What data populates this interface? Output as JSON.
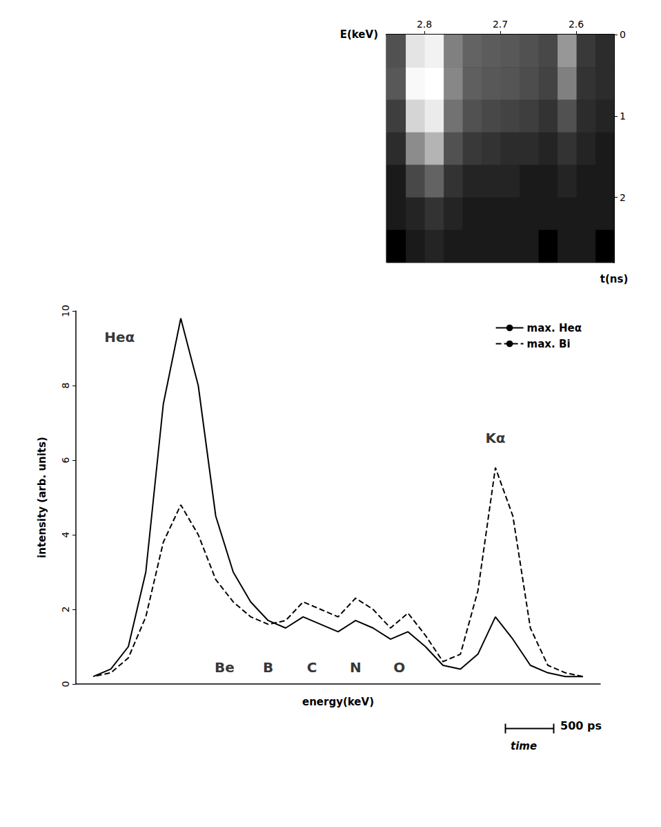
{
  "chart_data": [
    {
      "type": "line",
      "x_label": "energy(keV)",
      "y_label": "intensity (arb. units)",
      "x": [
        2.56,
        2.57,
        2.58,
        2.59,
        2.6,
        2.61,
        2.62,
        2.63,
        2.64,
        2.65,
        2.66,
        2.67,
        2.68,
        2.69,
        2.7,
        2.71,
        2.72,
        2.73,
        2.74,
        2.75,
        2.76,
        2.77,
        2.78,
        2.79,
        2.8,
        2.81,
        2.82,
        2.83,
        2.84
      ],
      "series": [
        {
          "name": "max. Heα",
          "color": "#000000",
          "line_style": "solid",
          "values": [
            0.2,
            0.2,
            0.3,
            0.5,
            1.2,
            1.8,
            0.8,
            0.4,
            0.5,
            1.0,
            1.4,
            1.2,
            1.5,
            1.7,
            1.4,
            1.6,
            1.8,
            1.5,
            1.7,
            2.2,
            3.0,
            4.5,
            8.0,
            9.8,
            7.5,
            3.0,
            1.0,
            0.4,
            0.2
          ]
        },
        {
          "name": "max. Bi",
          "color": "#000000",
          "line_style": "dashed",
          "values": [
            0.2,
            0.3,
            0.5,
            1.5,
            4.5,
            5.8,
            2.5,
            0.8,
            0.6,
            1.3,
            1.9,
            1.5,
            2.0,
            2.3,
            1.8,
            2.0,
            2.2,
            1.7,
            1.6,
            1.8,
            2.2,
            2.8,
            4.0,
            4.8,
            3.8,
            1.8,
            0.7,
            0.3,
            0.2
          ]
        }
      ],
      "xlim": [
        2.85,
        2.55
      ],
      "ylim": [
        0,
        10
      ],
      "yticks": [
        0,
        2,
        4,
        6,
        8,
        10
      ],
      "grid": false,
      "legend": "upper right",
      "tick_labels": "y",
      "marker": "none",
      "annotations": [
        {
          "text": "Heα",
          "x": 2.825,
          "y": 9.3
        },
        {
          "text": "Kα",
          "x": 2.61,
          "y": 6.6
        },
        {
          "text": "Be",
          "x": 2.765,
          "y": 0.45
        },
        {
          "text": "B",
          "x": 2.74,
          "y": 0.45
        },
        {
          "text": "C",
          "x": 2.715,
          "y": 0.45
        },
        {
          "text": "N",
          "x": 2.69,
          "y": 0.45
        },
        {
          "text": "O",
          "x": 2.665,
          "y": 0.45
        }
      ],
      "time_axis": {
        "title": "time",
        "scale_label": "500 ps"
      }
    },
    {
      "type": "heatmap",
      "x_label": "E(keV)",
      "y_label": "t(ns)",
      "xlim": [
        2.85,
        2.55
      ],
      "ylim": [
        2.8,
        0
      ],
      "xticks": [
        2.8,
        2.7,
        2.6
      ],
      "yticks": [
        0,
        1,
        2
      ],
      "cells": {
        "x": [
          2.5625,
          2.5875,
          2.6125,
          2.6375,
          2.6625,
          2.6875,
          2.7125,
          2.7375,
          2.7625,
          2.7875,
          2.8125,
          2.8375
        ],
        "y": [
          0.2,
          0.6,
          1.0,
          1.4,
          1.8,
          2.2,
          2.6
        ],
        "values": [
          [
            0.3,
            0.5,
            3.5,
            0.8,
            1.0,
            1.2,
            1.3,
            1.5,
            2.5,
            9.0,
            8.0,
            1.0
          ],
          [
            0.3,
            0.4,
            2.5,
            0.7,
            0.9,
            1.1,
            1.2,
            1.4,
            2.8,
            10,
            9.5,
            1.2
          ],
          [
            0.2,
            0.3,
            1.0,
            0.4,
            0.6,
            0.7,
            0.8,
            1.0,
            2.0,
            8.5,
            7.0,
            0.6
          ],
          [
            0.1,
            0.2,
            0.4,
            0.2,
            0.3,
            0.3,
            0.4,
            0.5,
            1.0,
            5.0,
            3.0,
            0.3
          ],
          [
            0.1,
            0.1,
            0.2,
            0.1,
            0.1,
            0.2,
            0.2,
            0.2,
            0.4,
            1.5,
            0.8,
            0.1
          ],
          [
            0.1,
            0.1,
            0.1,
            0.1,
            0.1,
            0.1,
            0.1,
            0.1,
            0.2,
            0.4,
            0.2,
            0.1
          ],
          [
            0.0,
            0.1,
            0.1,
            0.0,
            0.1,
            0.1,
            0.1,
            0.1,
            0.1,
            0.2,
            0.1,
            0.0
          ]
        ]
      }
    }
  ]
}
